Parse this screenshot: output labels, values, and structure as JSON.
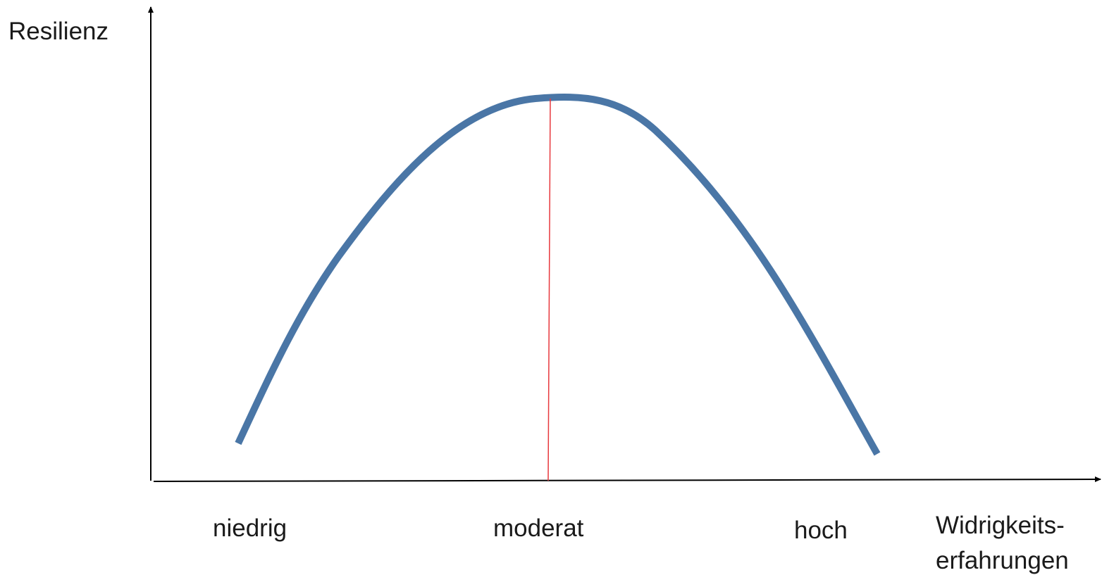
{
  "y_axis": {
    "label": "Resilienz"
  },
  "x_axis": {
    "levels": [
      "niedrig",
      "moderat",
      "hoch"
    ],
    "label_lines": [
      "Widrigkeits-",
      "erfahrungen"
    ]
  }
}
